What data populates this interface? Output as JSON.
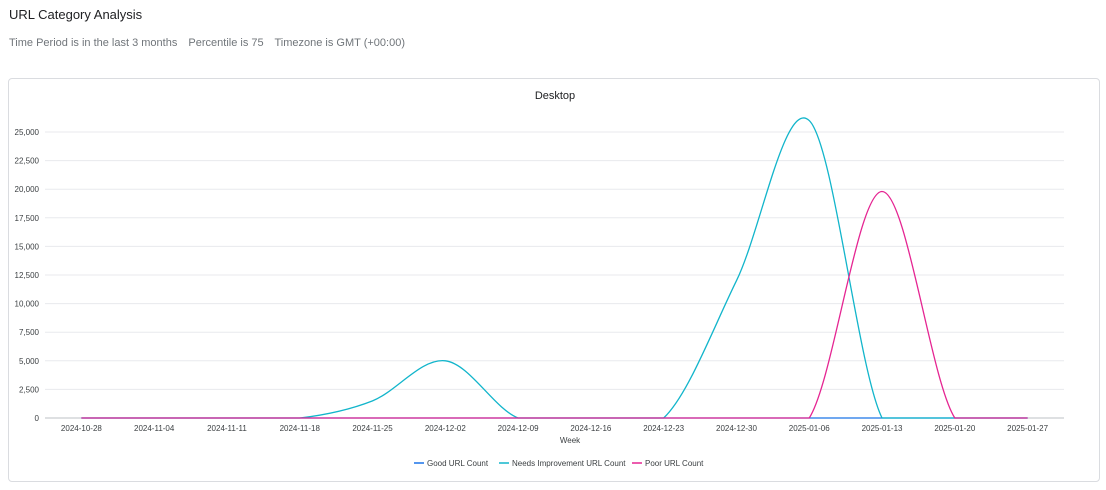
{
  "page": {
    "title": "URL Category Analysis",
    "filters": [
      "Time Period is in the last 3 months",
      "Percentile is 75",
      "Timezone is GMT (+00:00)"
    ]
  },
  "colors": {
    "good": "#1a73e8",
    "needs": "#12b5cb",
    "poor": "#e52592",
    "grid": "#e8eaed",
    "axis": "#bdc1c6"
  },
  "chart_data": {
    "type": "line",
    "title": "Desktop",
    "xlabel": "Week",
    "ylabel": "",
    "ylim": [
      0,
      25000
    ],
    "y_ticks": [
      0,
      2500,
      5000,
      7500,
      10000,
      12500,
      15000,
      17500,
      20000,
      22500,
      25000
    ],
    "y_tick_labels": [
      "0",
      "2,500",
      "5,000",
      "7,500",
      "10,000",
      "12,500",
      "15,000",
      "17,500",
      "20,000",
      "22,500",
      "25,000"
    ],
    "categories": [
      "2024-10-28",
      "2024-11-04",
      "2024-11-11",
      "2024-11-18",
      "2024-11-25",
      "2024-12-02",
      "2024-12-09",
      "2024-12-16",
      "2024-12-23",
      "2024-12-30",
      "2025-01-06",
      "2025-01-13",
      "2025-01-20",
      "2025-01-27"
    ],
    "legend_position": "bottom",
    "grid": true,
    "series": [
      {
        "name": "Good URL Count",
        "values": [
          0,
          0,
          0,
          0,
          0,
          0,
          0,
          0,
          0,
          0,
          0,
          0,
          0,
          0
        ]
      },
      {
        "name": "Needs Improvement URL Count",
        "values": [
          0,
          0,
          0,
          0,
          1500,
          5000,
          0,
          0,
          0,
          12000,
          26000,
          0,
          0,
          0
        ]
      },
      {
        "name": "Poor URL Count",
        "values": [
          0,
          0,
          0,
          0,
          0,
          0,
          0,
          0,
          0,
          0,
          0,
          19800,
          0,
          0
        ]
      }
    ]
  }
}
